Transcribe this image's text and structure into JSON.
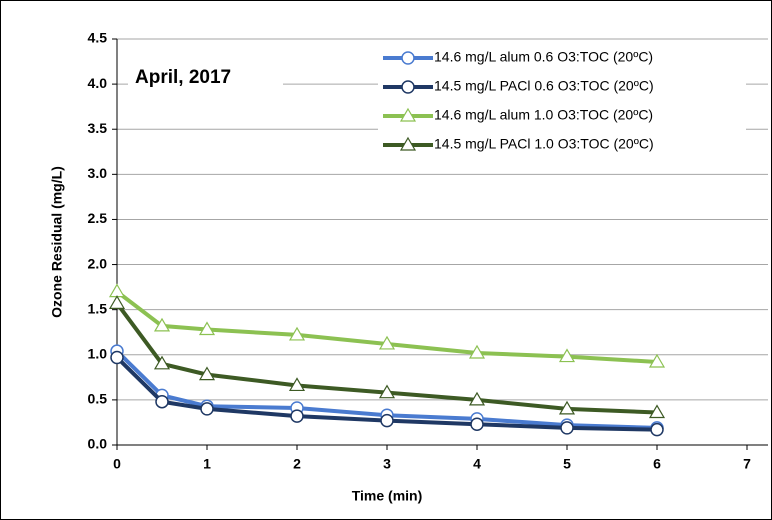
{
  "chart_data": {
    "type": "line",
    "annotation": "April, 2017",
    "x_label": "Time (min)",
    "y_label": "Ozone Residual (mg/L)",
    "x": [
      0,
      0.5,
      1,
      2,
      3,
      4,
      5,
      6
    ],
    "series": [
      {
        "name": "14.6 mg/L alum 0.6 O3:TOC (20ºC)",
        "color": "#4a7bd0",
        "marker": "circle",
        "values": [
          1.04,
          0.55,
          0.43,
          0.41,
          0.33,
          0.29,
          0.22,
          0.19
        ]
      },
      {
        "name": "14.5 mg/L PACl 0.6 O3:TOC (20ºC)",
        "color": "#1f3864",
        "marker": "circle",
        "values": [
          0.97,
          0.48,
          0.4,
          0.32,
          0.27,
          0.23,
          0.19,
          0.17
        ]
      },
      {
        "name": "14.6 mg/L alum 1.0 O3:TOC (20ºC)",
        "color": "#8cc152",
        "marker": "triangle",
        "values": [
          1.7,
          1.32,
          1.28,
          1.22,
          1.12,
          1.02,
          0.98,
          0.92
        ]
      },
      {
        "name": "14.5 mg/L PACl 1.0 O3:TOC (20ºC)",
        "color": "#3d5a24",
        "marker": "triangle",
        "values": [
          1.57,
          0.9,
          0.78,
          0.66,
          0.58,
          0.5,
          0.4,
          0.36
        ]
      }
    ],
    "xlim": [
      0,
      7
    ],
    "xticks": [
      0,
      1,
      2,
      3,
      4,
      5,
      6,
      7
    ],
    "ylim": [
      0,
      4.5
    ],
    "yticks": [
      {
        "value": 0,
        "label": "0.0"
      },
      0.5,
      {
        "value": 1,
        "label": "1.0"
      },
      1.5,
      {
        "value": 2,
        "label": "2.0"
      },
      2.5,
      {
        "value": 3,
        "label": "3.0"
      },
      3.5,
      {
        "value": 4,
        "label": "4.0"
      },
      4.5
    ],
    "grid": true
  }
}
